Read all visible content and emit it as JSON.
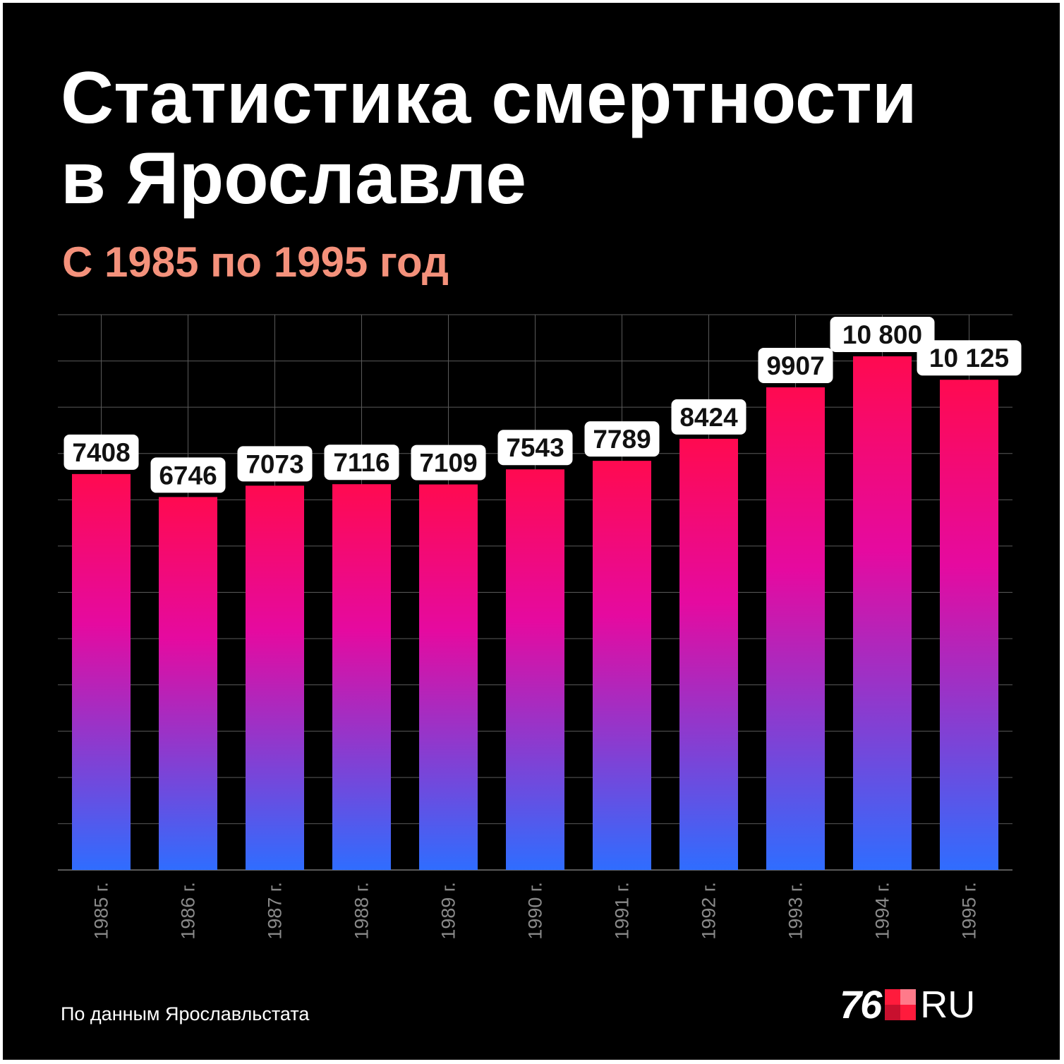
{
  "header": {
    "title_line1": "Статистика смертности",
    "title_line2": "в Ярославле",
    "subtitle": "С 1985 по 1995 год"
  },
  "footer": {
    "source": "По данным Ярославльстата",
    "logo_number": "76",
    "logo_text": "RU"
  },
  "colors": {
    "background": "#000000",
    "title": "#ffffff",
    "subtitle": "#f4917b",
    "bar_top": "#ff0a50",
    "bar_mid": "#e50aa0",
    "bar_bottom": "#2f6dff",
    "grid": "#5a5a5a",
    "tick_label": "#8a8a8a",
    "value_box": "#ffffff",
    "value_text": "#111111",
    "logo_accent": "#ff1b3c"
  },
  "chart_data": {
    "type": "bar",
    "categories": [
      "1985 г.",
      "1986 г.",
      "1987 г.",
      "1988 г.",
      "1989 г.",
      "1990 г.",
      "1991 г.",
      "1992 г.",
      "1993 г.",
      "1994 г.",
      "1995 г."
    ],
    "values": [
      7408,
      6746,
      7073,
      7116,
      7109,
      7543,
      7789,
      8424,
      9907,
      10800,
      10125
    ],
    "value_labels": [
      "7408",
      "6746",
      "7073",
      "7116",
      "7109",
      "7543",
      "7789",
      "8424",
      "9907",
      "10 800",
      "10 125"
    ],
    "xlabel": "",
    "ylabel": "",
    "ylim": [
      -4000,
      12000
    ],
    "grid": true,
    "y_tick_labels": false,
    "x_tick_rotation": "vertical"
  }
}
